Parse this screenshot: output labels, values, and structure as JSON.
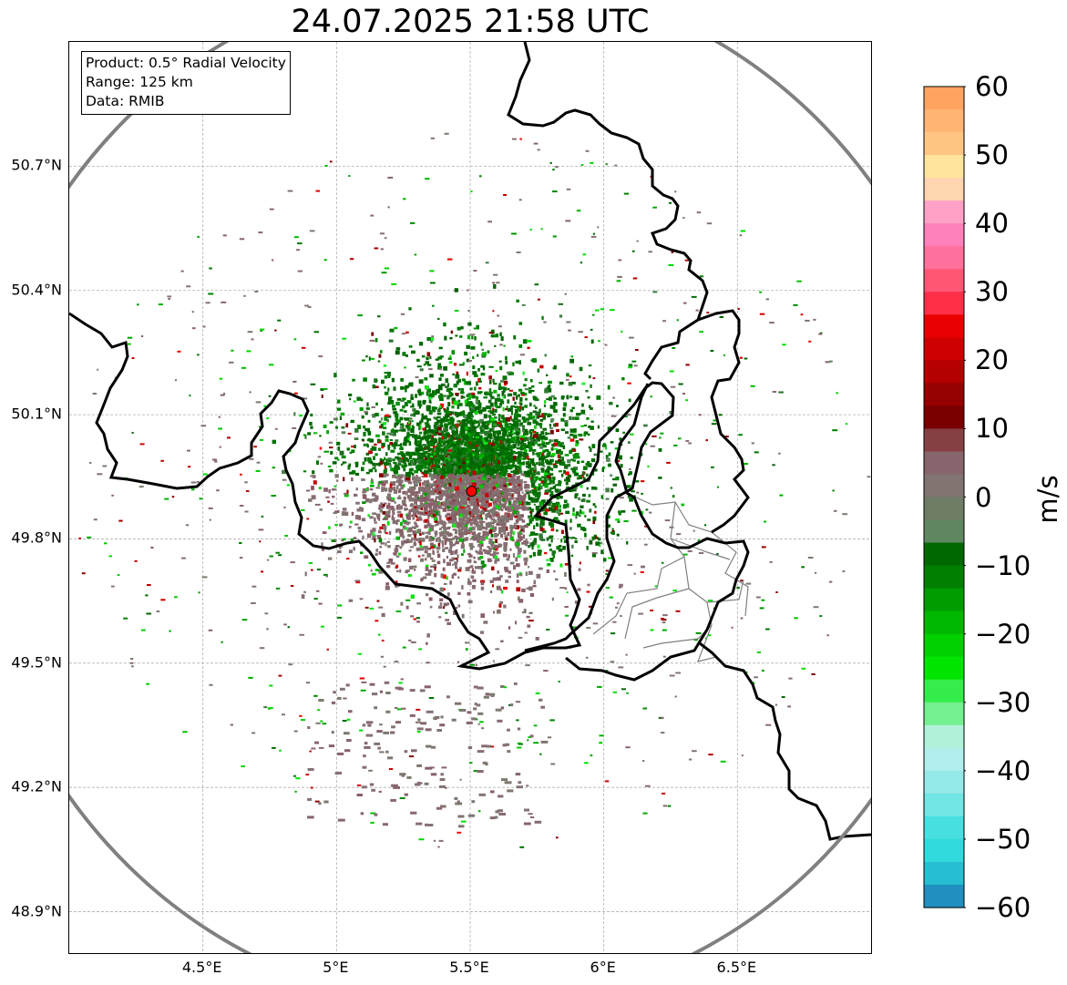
{
  "title": "24.07.2025 21:58 UTC",
  "info_box": {
    "product": "Product: 0.5° Radial Velocity",
    "range": "Range: 125 km",
    "data": "Data: RMIB"
  },
  "map": {
    "lat_labels": [
      "50.7°N",
      "50.4°N",
      "50.1°N",
      "49.8°N",
      "49.5°N",
      "49.2°N",
      "48.9°N"
    ],
    "lat_values": [
      50.7,
      50.4,
      50.1,
      49.8,
      49.5,
      49.2,
      48.9
    ],
    "lon_labels": [
      "4.5°E",
      "5°E",
      "5.5°E",
      "6°E",
      "6.5°E"
    ],
    "lon_values": [
      4.5,
      5.0,
      5.5,
      6.0,
      6.5
    ],
    "extent": {
      "lon_min": 4.0,
      "lon_max": 7.0,
      "lat_min": 48.8,
      "lat_max": 51.0
    },
    "radar_site": {
      "lon": 5.505,
      "lat": 49.915
    },
    "range_ring_color": "#808080",
    "border_color": "#000000",
    "subregion_color": "#808080",
    "radar_marker_color": "#ff0000"
  },
  "colorbar": {
    "unit": "m/s",
    "min": -60,
    "max": 60,
    "tick_labels": [
      "60",
      "50",
      "40",
      "30",
      "20",
      "10",
      "0",
      "−10",
      "−20",
      "−30",
      "−40",
      "−50",
      "−60"
    ],
    "tick_values": [
      60,
      50,
      40,
      30,
      20,
      10,
      0,
      -10,
      -20,
      -30,
      -40,
      -50,
      -60
    ],
    "stops": [
      [
        -60,
        "#1f77b4"
      ],
      [
        -57,
        "#22a3c7"
      ],
      [
        -53,
        "#28d8dc"
      ],
      [
        -48,
        "#49e0e0"
      ],
      [
        -44,
        "#7fe6e6"
      ],
      [
        -40,
        "#a6ebeb"
      ],
      [
        -36,
        "#c3f2f2"
      ],
      [
        -33,
        "#8ff0a8"
      ],
      [
        -29,
        "#3fef59"
      ],
      [
        -25,
        "#00e400"
      ],
      [
        -20,
        "#00c400"
      ],
      [
        -15,
        "#009c00"
      ],
      [
        -10,
        "#007100"
      ],
      [
        -7,
        "#006000"
      ],
      [
        -6,
        "#5c8a60"
      ],
      [
        -3,
        "#668061"
      ],
      [
        0,
        "#7b7a6e"
      ],
      [
        3,
        "#877074"
      ],
      [
        6,
        "#87606a"
      ],
      [
        8,
        "#8c4d52"
      ],
      [
        10,
        "#6a0000"
      ],
      [
        14,
        "#8c0000"
      ],
      [
        18,
        "#b10000"
      ],
      [
        22,
        "#d20000"
      ],
      [
        26,
        "#f00000"
      ],
      [
        28,
        "#ff2b44"
      ],
      [
        32,
        "#ff5a78"
      ],
      [
        36,
        "#ff78a8"
      ],
      [
        40,
        "#ff87c8"
      ],
      [
        43,
        "#ffb6c4"
      ],
      [
        45,
        "#ffd5b0"
      ],
      [
        48,
        "#ffe7a0"
      ],
      [
        52,
        "#ffc380"
      ],
      [
        56,
        "#ffb070"
      ],
      [
        60,
        "#ff9a55"
      ]
    ]
  }
}
